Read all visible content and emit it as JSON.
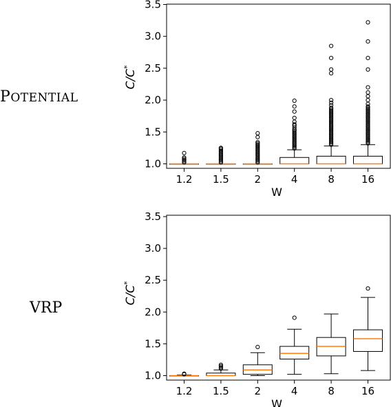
{
  "row_labels": {
    "potential_first": "P",
    "potential_rest": "OTENTIAL",
    "vrp": "VRP"
  },
  "chart_data": [
    {
      "type": "box",
      "row": "POTENTIAL",
      "xlabel": "W",
      "ylabel": "C/C*",
      "ylim": [
        1.0,
        3.5
      ],
      "yticks": [
        "1.0",
        "1.5",
        "2.0",
        "2.5",
        "3.0",
        "3.5"
      ],
      "categories": [
        "1.2",
        "1.5",
        "2",
        "4",
        "8",
        "16"
      ],
      "boxes": [
        {
          "q1": 1.0,
          "median": 1.0,
          "q3": 1.0,
          "whislo": 1.0,
          "whishi": 1.0,
          "fliers": [
            1.02,
            1.04,
            1.06,
            1.08,
            1.1,
            1.17
          ]
        },
        {
          "q1": 1.0,
          "median": 1.0,
          "q3": 1.0,
          "whislo": 1.0,
          "whishi": 1.0,
          "fliers": [
            1.02,
            1.04,
            1.06,
            1.08,
            1.1,
            1.12,
            1.14,
            1.16,
            1.18,
            1.2,
            1.22,
            1.24,
            1.25
          ]
        },
        {
          "q1": 1.0,
          "median": 1.0,
          "q3": 1.0,
          "whislo": 1.0,
          "whishi": 1.0,
          "fliers": [
            1.02,
            1.04,
            1.06,
            1.08,
            1.1,
            1.12,
            1.14,
            1.16,
            1.18,
            1.2,
            1.22,
            1.24,
            1.26,
            1.28,
            1.3,
            1.32,
            1.34,
            1.42,
            1.48
          ]
        },
        {
          "q1": 1.0,
          "median": 1.0,
          "q3": 1.1,
          "whislo": 1.0,
          "whishi": 1.22,
          "fliers": [
            1.24,
            1.26,
            1.28,
            1.3,
            1.32,
            1.34,
            1.36,
            1.38,
            1.4,
            1.42,
            1.44,
            1.46,
            1.48,
            1.5,
            1.52,
            1.54,
            1.57,
            1.6,
            1.62,
            1.66,
            1.72,
            1.82,
            1.9,
            1.99
          ]
        },
        {
          "q1": 1.0,
          "median": 1.0,
          "q3": 1.12,
          "whislo": 1.0,
          "whishi": 1.28,
          "fliers": [
            1.3,
            1.32,
            1.34,
            1.36,
            1.38,
            1.4,
            1.42,
            1.44,
            1.46,
            1.48,
            1.5,
            1.52,
            1.54,
            1.56,
            1.58,
            1.6,
            1.62,
            1.64,
            1.66,
            1.68,
            1.7,
            1.72,
            1.74,
            1.76,
            1.78,
            1.8,
            1.82,
            1.84,
            1.86,
            1.88,
            1.92,
            1.96,
            2.0,
            2.42,
            2.48,
            2.66,
            2.85
          ]
        },
        {
          "q1": 1.0,
          "median": 1.0,
          "q3": 1.12,
          "whislo": 1.0,
          "whishi": 1.3,
          "fliers": [
            1.32,
            1.34,
            1.36,
            1.38,
            1.4,
            1.42,
            1.44,
            1.46,
            1.48,
            1.5,
            1.52,
            1.54,
            1.56,
            1.58,
            1.6,
            1.62,
            1.64,
            1.66,
            1.68,
            1.7,
            1.72,
            1.74,
            1.76,
            1.78,
            1.8,
            1.82,
            1.84,
            1.86,
            1.88,
            1.9,
            1.94,
            2.0,
            2.06,
            2.12,
            2.2,
            2.48,
            2.66,
            2.92,
            3.22
          ]
        }
      ]
    },
    {
      "type": "box",
      "row": "VRP",
      "xlabel": "W",
      "ylabel": "C/C*",
      "ylim": [
        1.0,
        3.5
      ],
      "yticks": [
        "1.0",
        "1.5",
        "2.0",
        "2.5",
        "3.0",
        "3.5"
      ],
      "categories": [
        "1.2",
        "1.5",
        "2",
        "4",
        "8",
        "16"
      ],
      "boxes": [
        {
          "q1": 1.0,
          "median": 1.0,
          "q3": 1.0,
          "whislo": 1.0,
          "whishi": 1.01,
          "fliers": [
            1.02,
            1.03
          ]
        },
        {
          "q1": 1.0,
          "median": 1.0,
          "q3": 1.04,
          "whislo": 1.0,
          "whishi": 1.09,
          "fliers": [
            1.11,
            1.13,
            1.15,
            1.17
          ]
        },
        {
          "q1": 1.02,
          "median": 1.09,
          "q3": 1.17,
          "whislo": 1.0,
          "whishi": 1.36,
          "fliers": [
            1.45
          ]
        },
        {
          "q1": 1.26,
          "median": 1.35,
          "q3": 1.46,
          "whislo": 1.02,
          "whishi": 1.73,
          "fliers": [
            1.91
          ]
        },
        {
          "q1": 1.31,
          "median": 1.46,
          "q3": 1.6,
          "whislo": 1.03,
          "whishi": 1.97,
          "fliers": []
        },
        {
          "q1": 1.38,
          "median": 1.58,
          "q3": 1.72,
          "whislo": 1.08,
          "whishi": 2.23,
          "fliers": [
            2.37
          ]
        }
      ]
    }
  ]
}
